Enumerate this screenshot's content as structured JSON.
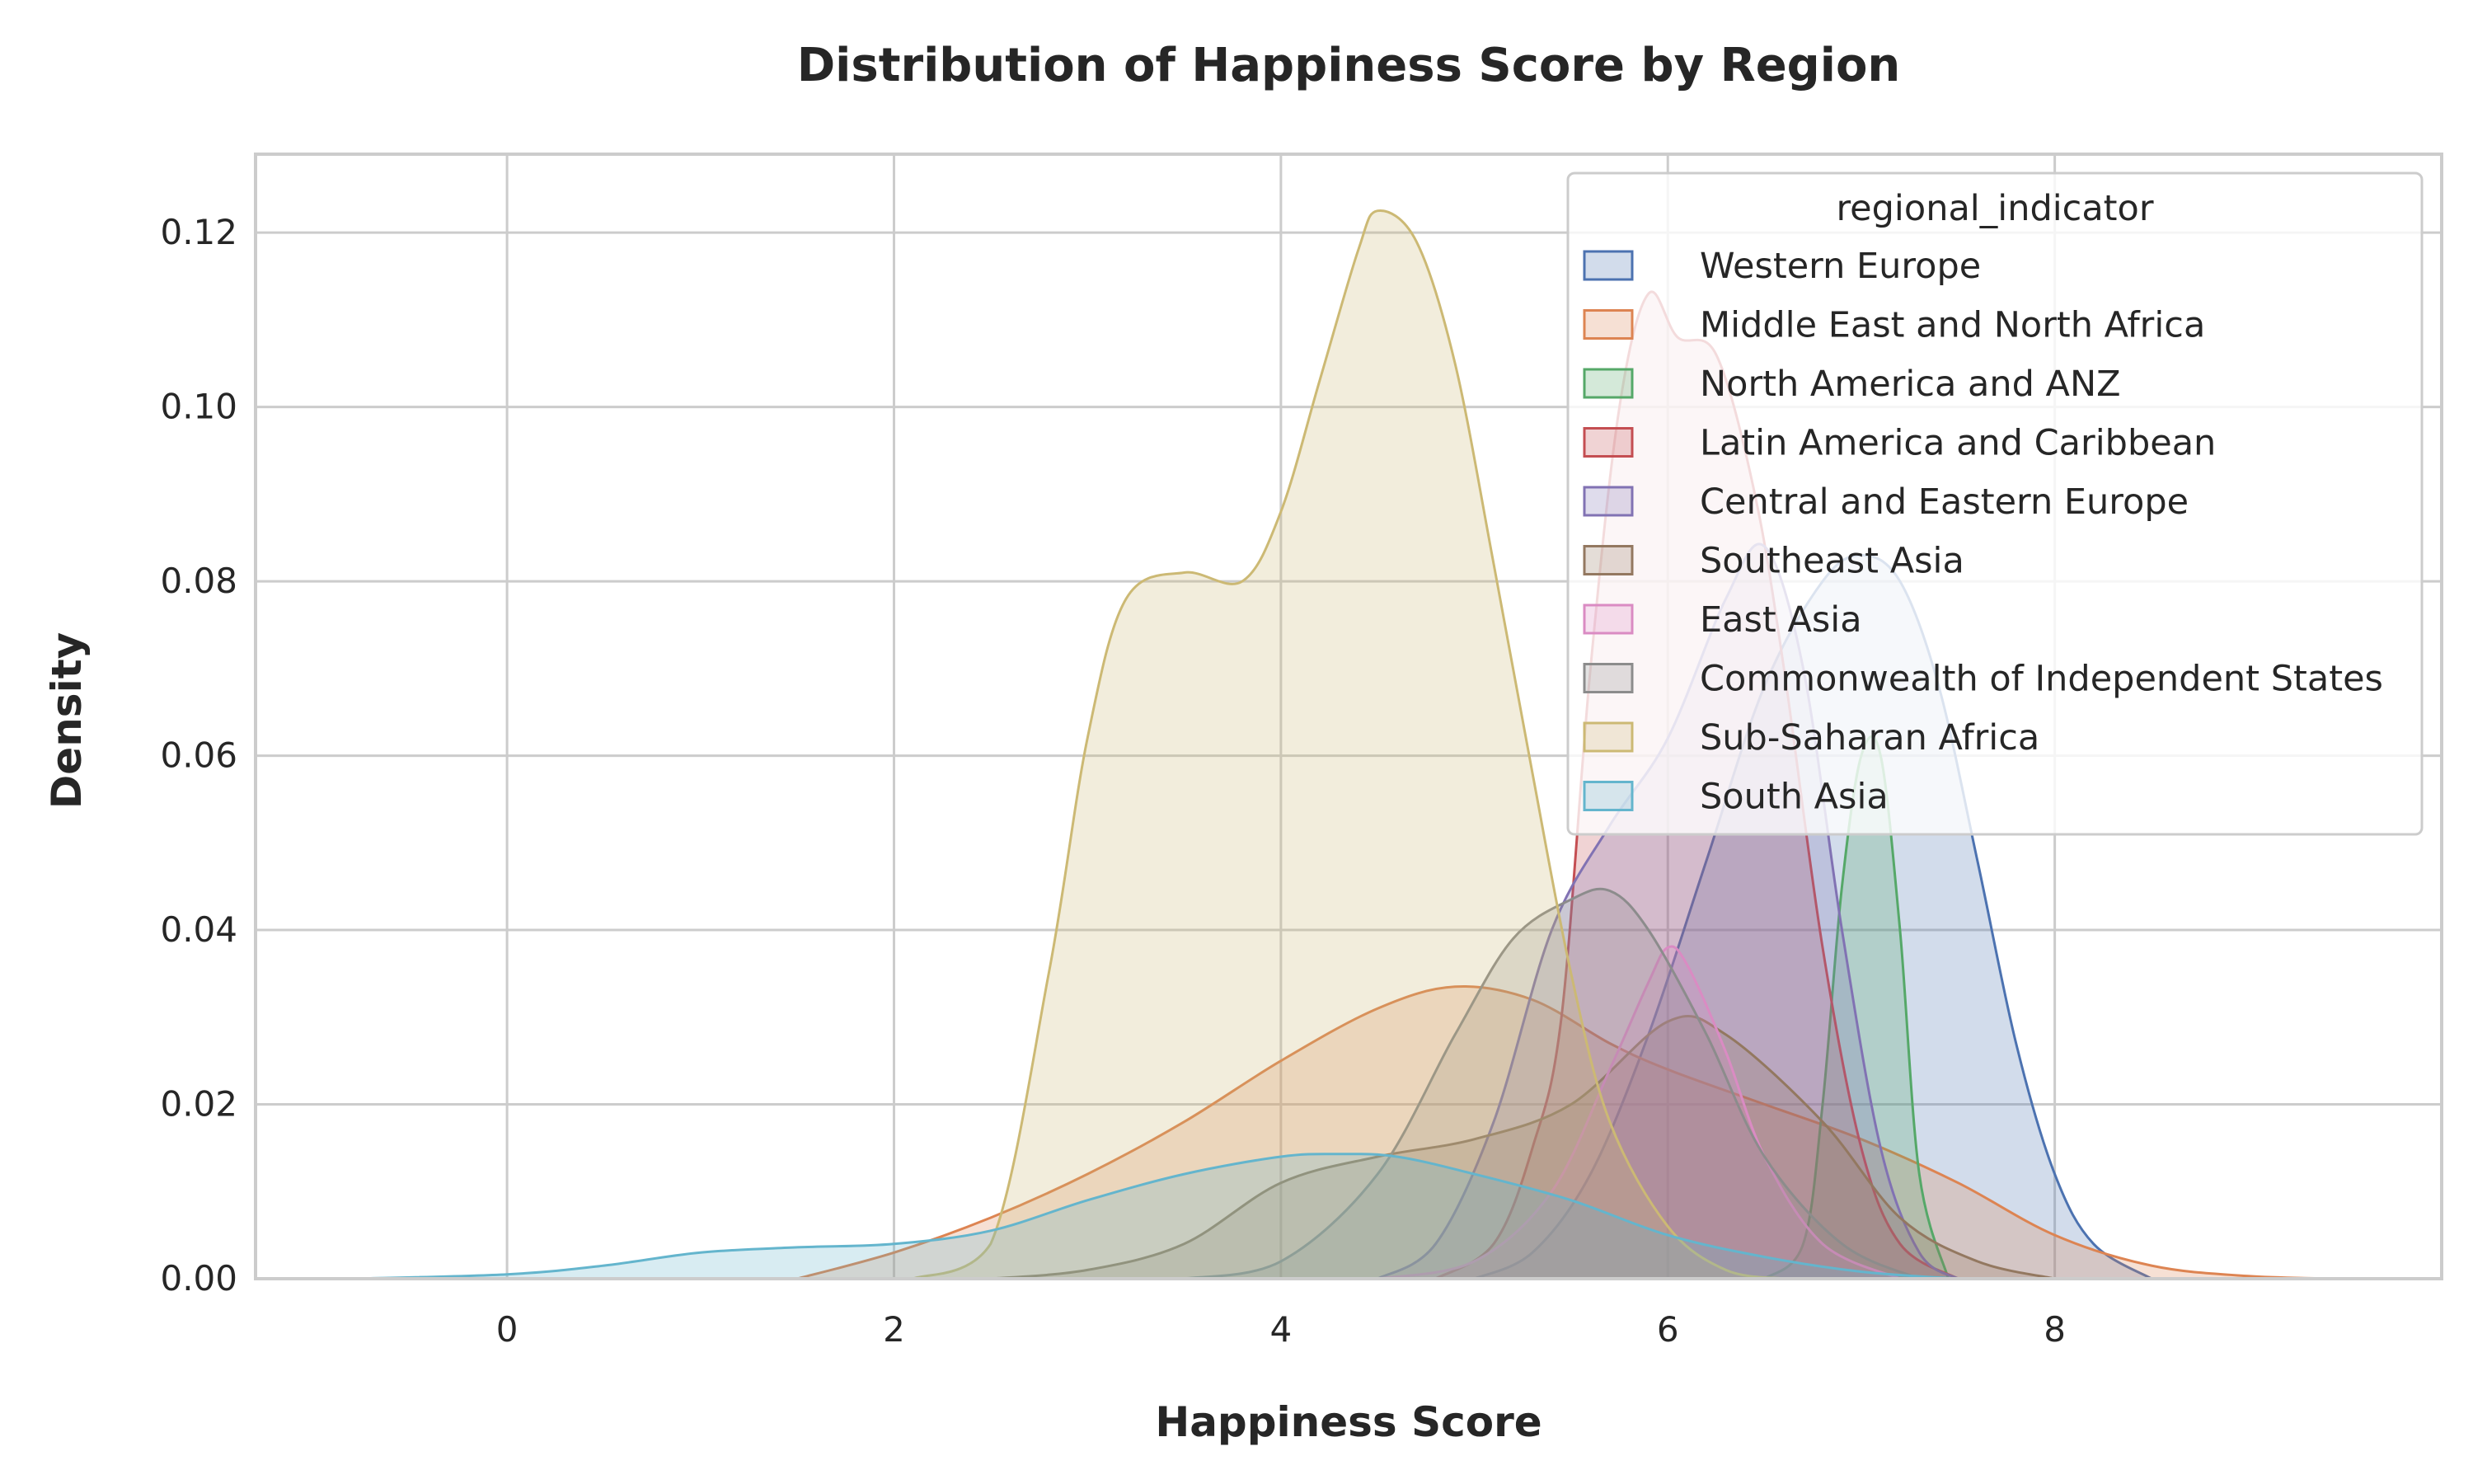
{
  "chart_data": {
    "type": "area",
    "title": "Distribution of Happiness Score by Region",
    "xlabel": "Happiness Score",
    "ylabel": "Density",
    "xlim": [
      -1.3,
      10
    ],
    "ylim": [
      0,
      0.129
    ],
    "xticks": [
      0,
      2,
      4,
      6,
      8
    ],
    "xtick_labels": [
      "0",
      "2",
      "4",
      "6",
      "8"
    ],
    "yticks": [
      0,
      0.02,
      0.04,
      0.06,
      0.08,
      0.1,
      0.12
    ],
    "ytick_labels": [
      "0.00",
      "0.02",
      "0.04",
      "0.06",
      "0.08",
      "0.10",
      "0.12"
    ],
    "grid": true,
    "legend": {
      "title": "regional_indicator",
      "position": "upper-right"
    },
    "series": [
      {
        "name": "Western Europe",
        "color": "#4c72b0",
        "points": [
          [
            5.0,
            0
          ],
          [
            5.3,
            0.003
          ],
          [
            5.6,
            0.012
          ],
          [
            5.9,
            0.028
          ],
          [
            6.2,
            0.048
          ],
          [
            6.5,
            0.068
          ],
          [
            6.8,
            0.08
          ],
          [
            7.0,
            0.083
          ],
          [
            7.2,
            0.08
          ],
          [
            7.4,
            0.068
          ],
          [
            7.6,
            0.048
          ],
          [
            7.8,
            0.027
          ],
          [
            8.0,
            0.012
          ],
          [
            8.2,
            0.004
          ],
          [
            8.5,
            0
          ]
        ]
      },
      {
        "name": "Middle East and North Africa",
        "color": "#dd8452",
        "points": [
          [
            1.5,
            0
          ],
          [
            2.0,
            0.003
          ],
          [
            2.5,
            0.007
          ],
          [
            3.0,
            0.012
          ],
          [
            3.5,
            0.018
          ],
          [
            4.0,
            0.025
          ],
          [
            4.5,
            0.031
          ],
          [
            4.9,
            0.0335
          ],
          [
            5.3,
            0.032
          ],
          [
            5.7,
            0.027
          ],
          [
            6.0,
            0.024
          ],
          [
            6.5,
            0.02
          ],
          [
            7.0,
            0.016
          ],
          [
            7.5,
            0.011
          ],
          [
            8.0,
            0.005
          ],
          [
            8.5,
            0.0015
          ],
          [
            9.0,
            0.0003
          ],
          [
            9.5,
            0
          ]
        ]
      },
      {
        "name": "North America and ANZ",
        "color": "#55a868",
        "points": [
          [
            6.5,
            0
          ],
          [
            6.7,
            0.004
          ],
          [
            6.8,
            0.02
          ],
          [
            6.9,
            0.045
          ],
          [
            7.0,
            0.06
          ],
          [
            7.1,
            0.06
          ],
          [
            7.2,
            0.04
          ],
          [
            7.3,
            0.012
          ],
          [
            7.45,
            0
          ]
        ]
      },
      {
        "name": "Latin America and Caribbean",
        "color": "#c44e52",
        "points": [
          [
            4.8,
            0
          ],
          [
            5.1,
            0.004
          ],
          [
            5.3,
            0.015
          ],
          [
            5.45,
            0.03
          ],
          [
            5.6,
            0.07
          ],
          [
            5.75,
            0.1
          ],
          [
            5.9,
            0.113
          ],
          [
            6.05,
            0.108
          ],
          [
            6.25,
            0.106
          ],
          [
            6.45,
            0.09
          ],
          [
            6.6,
            0.07
          ],
          [
            6.8,
            0.038
          ],
          [
            7.0,
            0.015
          ],
          [
            7.2,
            0.004
          ],
          [
            7.5,
            0
          ]
        ]
      },
      {
        "name": "Central and Eastern Europe",
        "color": "#8172b3",
        "points": [
          [
            4.5,
            0
          ],
          [
            4.8,
            0.004
          ],
          [
            5.1,
            0.018
          ],
          [
            5.4,
            0.04
          ],
          [
            5.7,
            0.052
          ],
          [
            6.0,
            0.062
          ],
          [
            6.3,
            0.078
          ],
          [
            6.5,
            0.084
          ],
          [
            6.7,
            0.07
          ],
          [
            6.9,
            0.04
          ],
          [
            7.1,
            0.015
          ],
          [
            7.3,
            0.003
          ],
          [
            7.5,
            0
          ]
        ]
      },
      {
        "name": "Southeast Asia",
        "color": "#937860",
        "points": [
          [
            2.5,
            0
          ],
          [
            3.0,
            0.001
          ],
          [
            3.5,
            0.004
          ],
          [
            4.0,
            0.011
          ],
          [
            4.5,
            0.014
          ],
          [
            5.0,
            0.016
          ],
          [
            5.5,
            0.02
          ],
          [
            6.0,
            0.0295
          ],
          [
            6.3,
            0.028
          ],
          [
            6.8,
            0.018
          ],
          [
            7.2,
            0.007
          ],
          [
            7.6,
            0.002
          ],
          [
            8.0,
            0
          ]
        ]
      },
      {
        "name": "East Asia",
        "color": "#da8bc3",
        "points": [
          [
            4.5,
            0
          ],
          [
            5.0,
            0.002
          ],
          [
            5.4,
            0.01
          ],
          [
            5.7,
            0.024
          ],
          [
            5.9,
            0.034
          ],
          [
            6.0,
            0.038
          ],
          [
            6.1,
            0.036
          ],
          [
            6.3,
            0.026
          ],
          [
            6.5,
            0.014
          ],
          [
            6.8,
            0.004
          ],
          [
            7.2,
            0
          ]
        ]
      },
      {
        "name": "Commonwealth of Independent States",
        "color": "#8c8c8c",
        "points": [
          [
            3.5,
            0
          ],
          [
            4.0,
            0.002
          ],
          [
            4.5,
            0.012
          ],
          [
            4.9,
            0.028
          ],
          [
            5.2,
            0.039
          ],
          [
            5.5,
            0.0435
          ],
          [
            5.7,
            0.0445
          ],
          [
            5.9,
            0.04
          ],
          [
            6.2,
            0.028
          ],
          [
            6.5,
            0.014
          ],
          [
            6.9,
            0.004
          ],
          [
            7.3,
            0
          ]
        ]
      },
      {
        "name": "Sub-Saharan Africa",
        "color": "#ccb974",
        "points": [
          [
            2.1,
            0
          ],
          [
            2.5,
            0.004
          ],
          [
            2.8,
            0.035
          ],
          [
            3.0,
            0.062
          ],
          [
            3.2,
            0.078
          ],
          [
            3.5,
            0.081
          ],
          [
            3.8,
            0.08
          ],
          [
            4.0,
            0.088
          ],
          [
            4.2,
            0.103
          ],
          [
            4.4,
            0.118
          ],
          [
            4.5,
            0.1225
          ],
          [
            4.7,
            0.119
          ],
          [
            4.9,
            0.105
          ],
          [
            5.1,
            0.082
          ],
          [
            5.3,
            0.058
          ],
          [
            5.5,
            0.035
          ],
          [
            5.7,
            0.018
          ],
          [
            6.0,
            0.006
          ],
          [
            6.3,
            0.001
          ],
          [
            6.6,
            0
          ]
        ]
      },
      {
        "name": "South Asia",
        "color": "#64b5cd",
        "points": [
          [
            -0.8,
            0
          ],
          [
            0.0,
            0.0005
          ],
          [
            0.5,
            0.0015
          ],
          [
            1.0,
            0.003
          ],
          [
            1.5,
            0.0036
          ],
          [
            2.0,
            0.004
          ],
          [
            2.5,
            0.0055
          ],
          [
            3.0,
            0.009
          ],
          [
            3.5,
            0.012
          ],
          [
            4.0,
            0.014
          ],
          [
            4.3,
            0.0143
          ],
          [
            4.6,
            0.014
          ],
          [
            5.0,
            0.012
          ],
          [
            5.5,
            0.009
          ],
          [
            6.0,
            0.005
          ],
          [
            6.5,
            0.0025
          ],
          [
            7.0,
            0.0008
          ],
          [
            7.5,
            0
          ]
        ]
      }
    ]
  }
}
